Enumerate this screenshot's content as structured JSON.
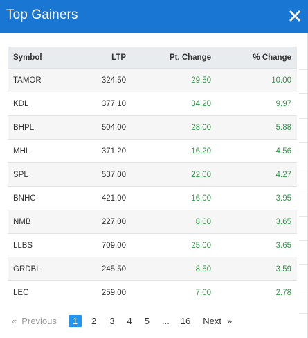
{
  "title": "Top Gainers",
  "close_icon": "close-icon",
  "columns": [
    "Symbol",
    "LTP",
    "Pt. Change",
    "% Change"
  ],
  "rows": [
    {
      "symbol": "TAMOR",
      "ltp": "324.50",
      "pt": "29.50",
      "pct": "10.00"
    },
    {
      "symbol": "KDL",
      "ltp": "377.10",
      "pt": "34.20",
      "pct": "9.97"
    },
    {
      "symbol": "BHPL",
      "ltp": "504.00",
      "pt": "28.00",
      "pct": "5.88"
    },
    {
      "symbol": "MHL",
      "ltp": "371.20",
      "pt": "16.20",
      "pct": "4.56"
    },
    {
      "symbol": "SPL",
      "ltp": "537.00",
      "pt": "22.00",
      "pct": "4.27"
    },
    {
      "symbol": "BNHC",
      "ltp": "421.00",
      "pt": "16.00",
      "pct": "3.95"
    },
    {
      "symbol": "NMB",
      "ltp": "227.00",
      "pt": "8.00",
      "pct": "3.65"
    },
    {
      "symbol": "LLBS",
      "ltp": "709.00",
      "pt": "25.00",
      "pct": "3.65"
    },
    {
      "symbol": "GRDBL",
      "ltp": "245.50",
      "pt": "8.50",
      "pct": "3.59"
    },
    {
      "symbol": "LEC",
      "ltp": "259.00",
      "pt": "7.00",
      "pct": "2.78"
    }
  ],
  "pagination": {
    "prev_arrow": "«",
    "prev_label": "Previous",
    "pages": [
      "1",
      "2",
      "3",
      "4",
      "5"
    ],
    "ellipsis": "...",
    "last_page": "16",
    "next_label": "Next",
    "next_arrow": "»",
    "current_page": "1"
  },
  "colors": {
    "header_bg": "#1976d2",
    "positive_change": "#2e9a47",
    "active_page": "#2196f3"
  }
}
